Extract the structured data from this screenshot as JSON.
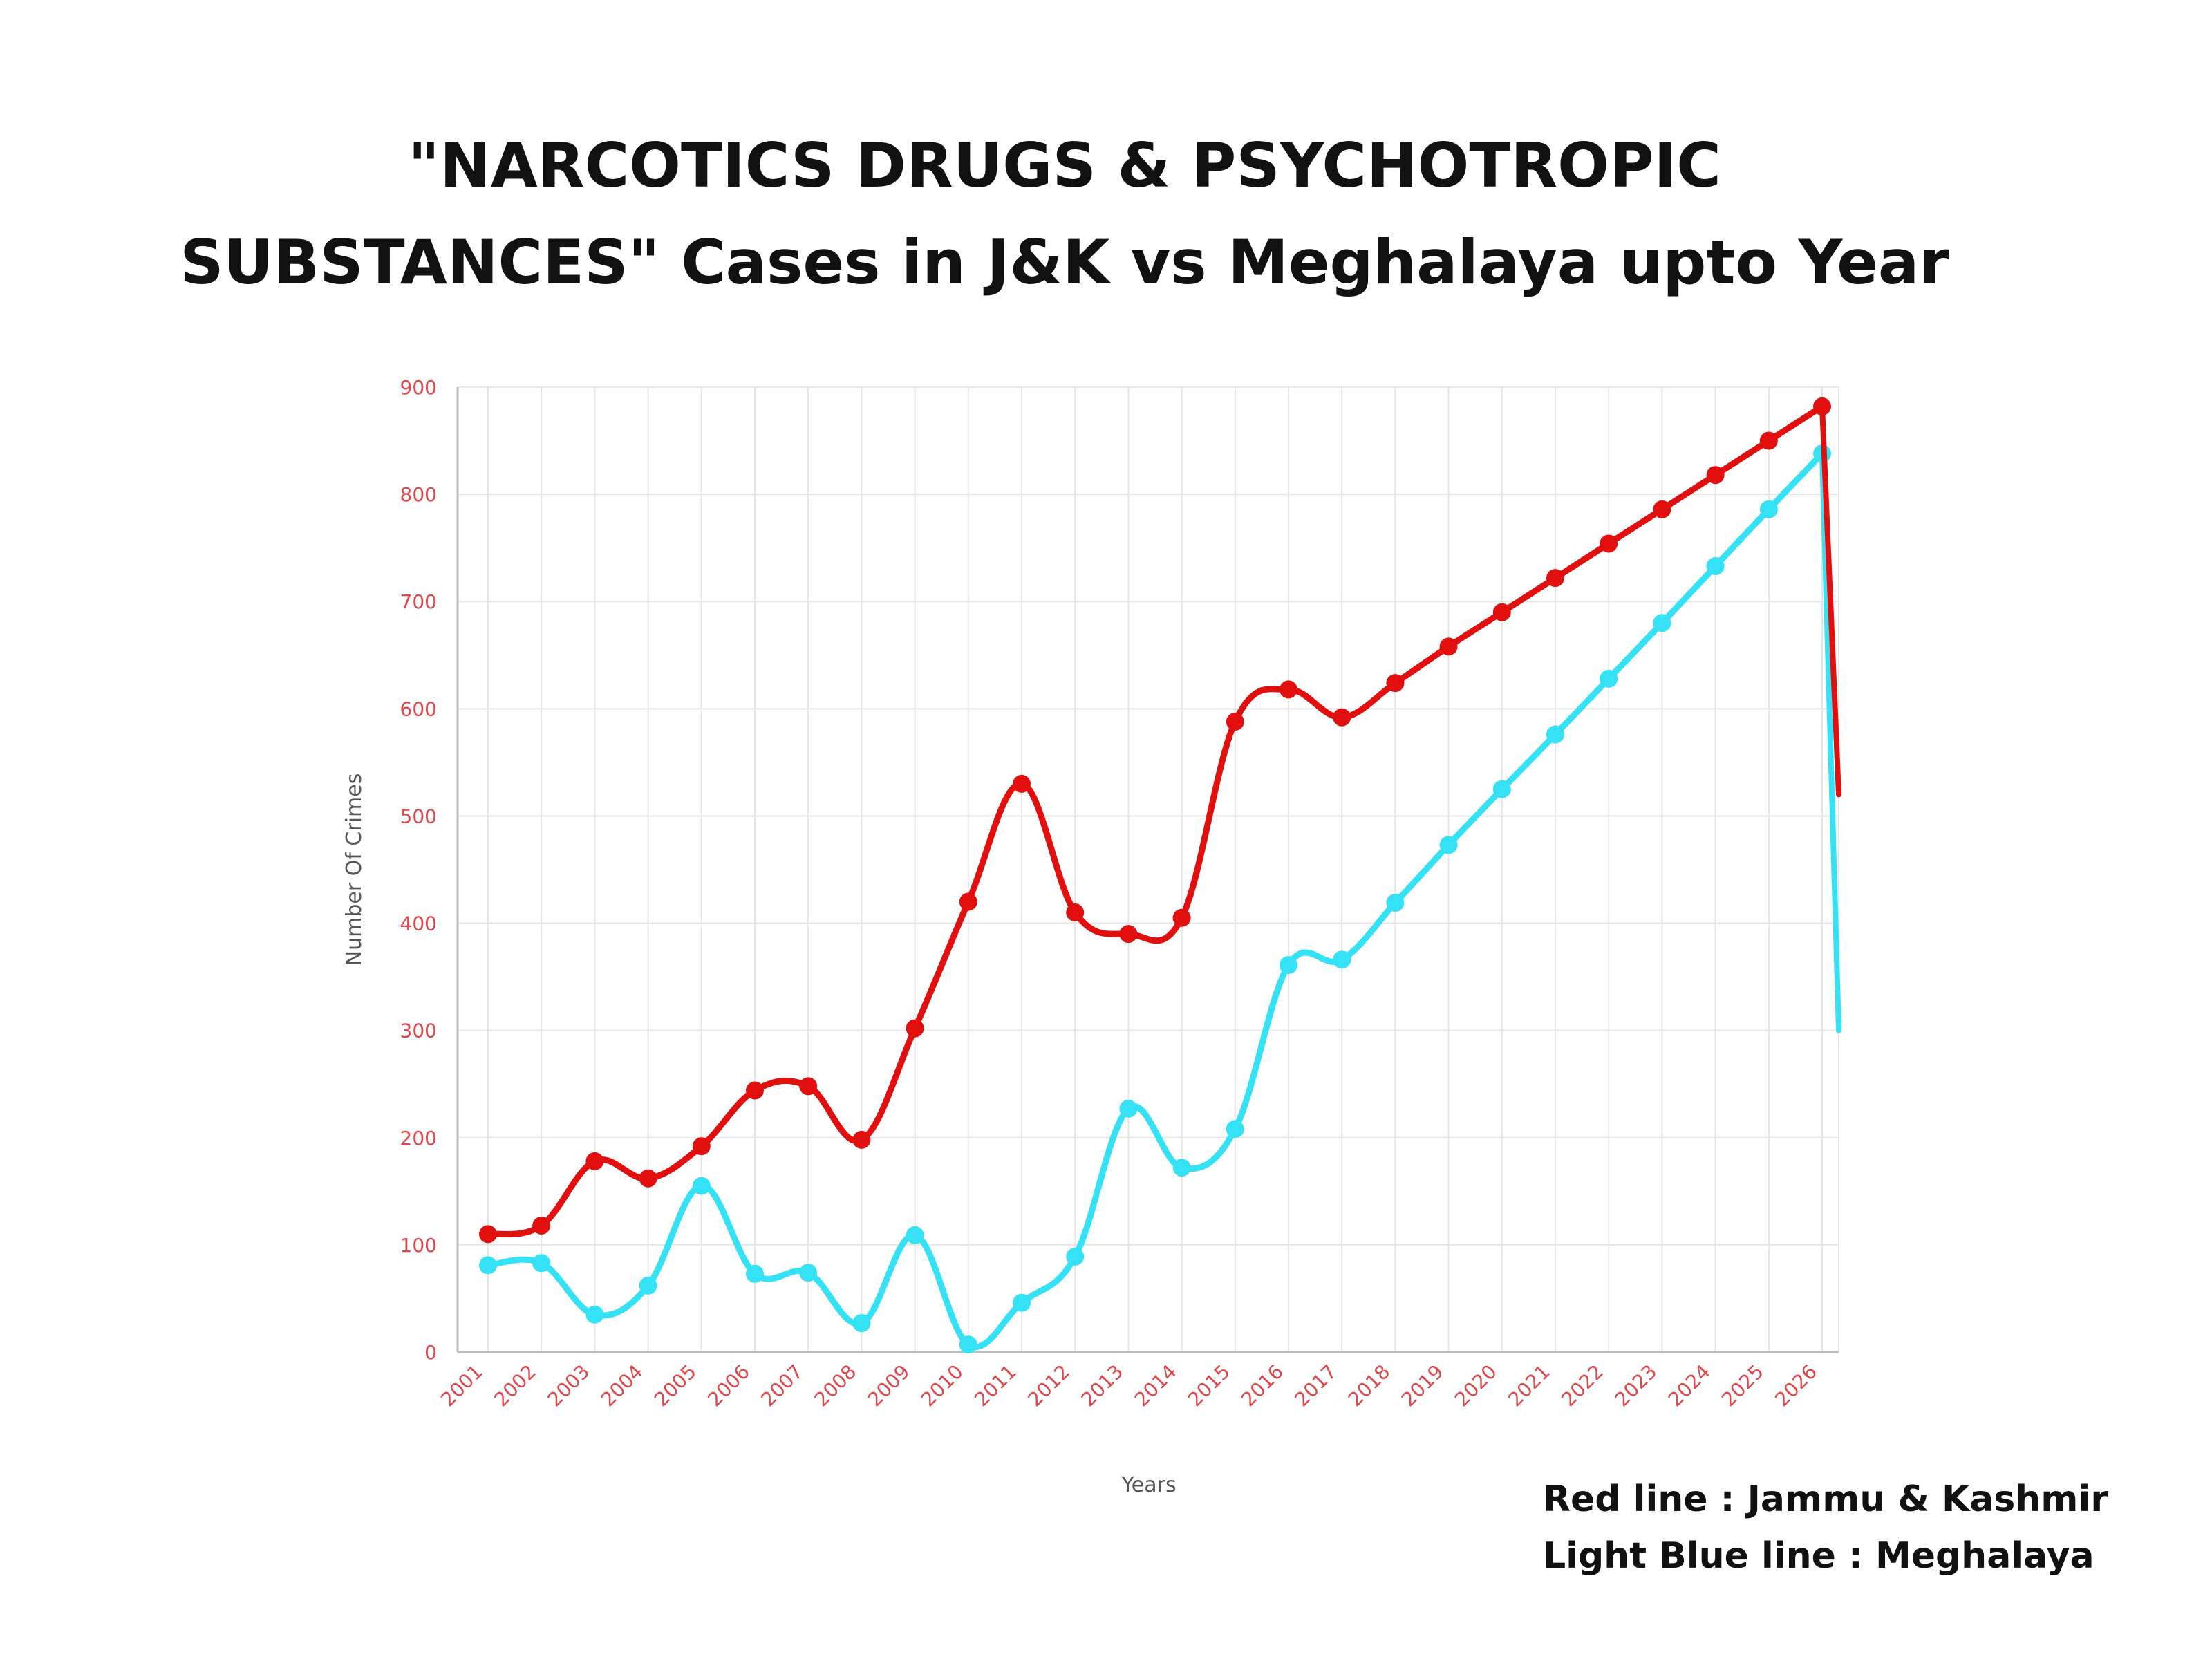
{
  "title_lines": [
    "\"NARCOTICS DRUGS & PSYCHOTROPIC",
    "SUBSTANCES\" Cases in J&K vs Meghalaya upto Year"
  ],
  "legend_lines": [
    "Red line : Jammu & Kashmir",
    "Light Blue line : Meghalaya"
  ],
  "chart_data": {
    "type": "line",
    "x": [
      "2001",
      "2002",
      "2003",
      "2004",
      "2005",
      "2006",
      "2007",
      "2008",
      "2009",
      "2010",
      "2011",
      "2012",
      "2013",
      "2014",
      "2015",
      "2016",
      "2017",
      "2018",
      "2019",
      "2020",
      "2021",
      "2022",
      "2023",
      "2024",
      "2025",
      "2026"
    ],
    "xlabel": "Years",
    "ylabel": "Number Of Crimes",
    "ylim": [
      0,
      900
    ],
    "yticks": [
      0,
      100,
      200,
      300,
      400,
      500,
      600,
      700,
      800,
      900
    ],
    "grid": true,
    "series": [
      {
        "color": "#e20f0f",
        "values": [
          110,
          118,
          178,
          162,
          192,
          244,
          248,
          198,
          302,
          420,
          530,
          410,
          390,
          405,
          588,
          618,
          592,
          624,
          658,
          690,
          722,
          754,
          786,
          818,
          850,
          882
        ]
      },
      {
        "color": "#35e2f5",
        "values": [
          81,
          83,
          35,
          62,
          155,
          73,
          74,
          27,
          109,
          7,
          46,
          89,
          227,
          172,
          208,
          361,
          366,
          419,
          473,
          525,
          576,
          628,
          680,
          733,
          786,
          838
        ]
      }
    ],
    "tail_drop": [
      {
        "series": 0,
        "value": 520
      },
      {
        "series": 1,
        "value": 300
      }
    ]
  },
  "colors": {
    "tick_label": "#e0464a",
    "axis_label": "#555555",
    "grid": "#e6e6e6",
    "axis": "#bdbdbd"
  }
}
